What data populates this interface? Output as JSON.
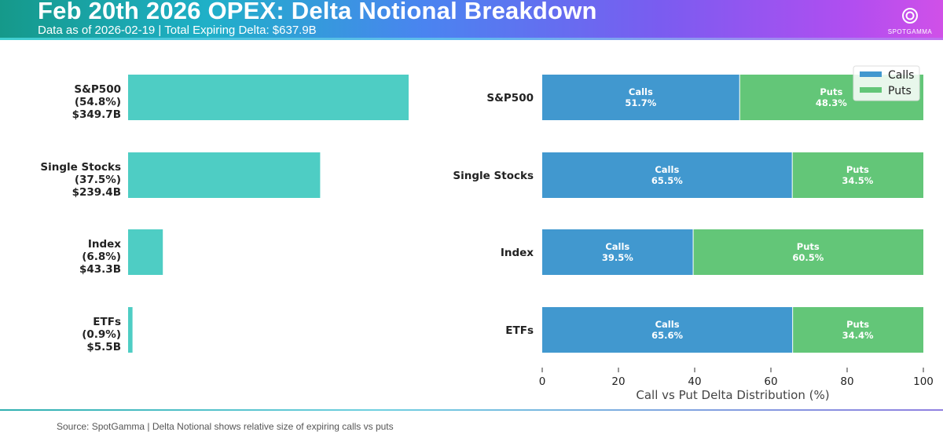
{
  "header": {
    "title": "Feb 20th 2026 OPEX: Delta Notional Breakdown",
    "subtitle": "Data as of 2026-02-19 | Total Expiring Delta: $637.9B",
    "logo_text": "SPOTGAMMA"
  },
  "footer": {
    "source": "Source: SpotGamma | Delta Notional shows relative size of expiring calls vs puts"
  },
  "chart_data": [
    {
      "type": "bar",
      "orientation": "horizontal",
      "color": "#4ecdc4",
      "categories": [
        "S&P500",
        "Single Stocks",
        "Index",
        "ETFs"
      ],
      "labels": [
        [
          "S&P500",
          "(54.8%)",
          "$349.7B"
        ],
        [
          "Single Stocks",
          "(37.5%)",
          "$239.4B"
        ],
        [
          "Index",
          "(6.8%)",
          "$43.3B"
        ],
        [
          "ETFs",
          "(0.9%)",
          "$5.5B"
        ]
      ],
      "values": [
        349.7,
        239.4,
        43.3,
        5.5
      ],
      "unit": "$B"
    },
    {
      "type": "bar",
      "orientation": "horizontal",
      "stacked": true,
      "categories": [
        "S&P500",
        "Single Stocks",
        "Index",
        "ETFs"
      ],
      "xlabel": "Call vs Put Delta Distribution (%)",
      "xlim": [
        0,
        100
      ],
      "xticks": [
        "0",
        "20",
        "40",
        "60",
        "80",
        "100"
      ],
      "series": [
        {
          "name": "Calls",
          "color": "#4198cf",
          "values": [
            51.7,
            65.5,
            39.5,
            65.6
          ]
        },
        {
          "name": "Puts",
          "color": "#63c678",
          "values": [
            48.3,
            34.5,
            60.5,
            34.4
          ]
        }
      ],
      "legend": "top-right"
    }
  ]
}
